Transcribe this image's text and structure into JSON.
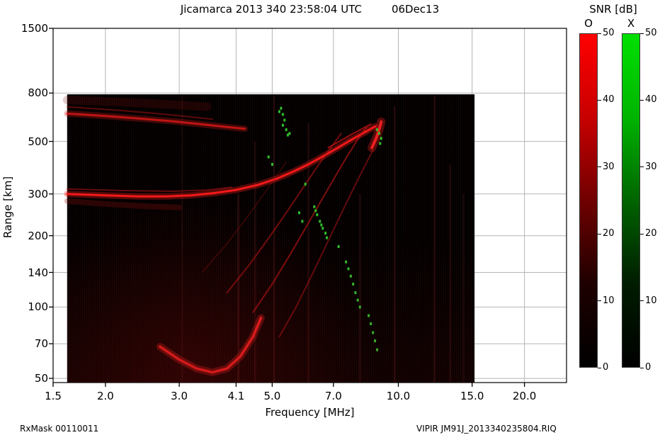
{
  "title": {
    "main": "Jicamarca 2013 340 23:58:04 UTC",
    "date": "06Dec13"
  },
  "footer": {
    "left": "RxMask 00110011",
    "right": "VIPIR  JM91J_2013340235804.RIQ"
  },
  "colorbar": {
    "title": "SNR [dB]",
    "o_label": "O",
    "x_label": "X",
    "min": 0,
    "max": 50,
    "ticks": [
      "50",
      "40",
      "30",
      "20",
      "10",
      "0"
    ],
    "o_gradient": [
      "#ff0000",
      "#c80000",
      "#700000",
      "#1e0000",
      "#000000"
    ],
    "x_gradient": [
      "#00e000",
      "#00b400",
      "#006400",
      "#001c00",
      "#000000"
    ]
  },
  "chart_data": {
    "type": "heatmap",
    "title": "Jicamarca 2013 340 23:58:04 UTC 06Dec13",
    "xlabel": "Frequency [MHz]",
    "ylabel": "Range [km]",
    "x_scale": "log",
    "y_scale": "log",
    "xlim": [
      1.5,
      25.2
    ],
    "ylim": [
      48,
      1500
    ],
    "x_ticks": [
      {
        "v": 1.5,
        "label": "1.5"
      },
      {
        "v": 2.0,
        "label": "2.0"
      },
      {
        "v": 3.0,
        "label": "3.0"
      },
      {
        "v": 4.1,
        "label": "4.1"
      },
      {
        "v": 5.0,
        "label": "5.0"
      },
      {
        "v": 7.0,
        "label": "7.0"
      },
      {
        "v": 10.0,
        "label": "10.0"
      },
      {
        "v": 15.0,
        "label": "15.0"
      },
      {
        "v": 20.0,
        "label": "20.0"
      }
    ],
    "y_ticks": [
      {
        "v": 1500,
        "label": "1500"
      },
      {
        "v": 800,
        "label": "800"
      },
      {
        "v": 500,
        "label": "500"
      },
      {
        "v": 300,
        "label": "300"
      },
      {
        "v": 200,
        "label": "200"
      },
      {
        "v": 140,
        "label": "140"
      },
      {
        "v": 100,
        "label": "100"
      },
      {
        "v": 70,
        "label": "70"
      },
      {
        "v": 50,
        "label": "50"
      }
    ],
    "snr_colorbar": {
      "min": 0,
      "max": 50,
      "modes": [
        "O",
        "X"
      ]
    },
    "data_extent": {
      "freq": [
        1.62,
        15.2
      ],
      "range": [
        48,
        790
      ]
    },
    "rfi_streaks": [
      {
        "freq": 3.05,
        "range": [
          48,
          780
        ],
        "opacity": 0.1
      },
      {
        "freq": 4.15,
        "range": [
          48,
          300
        ],
        "opacity": 0.18
      },
      {
        "freq": 4.55,
        "range": [
          48,
          500
        ],
        "opacity": 0.14
      },
      {
        "freq": 5.05,
        "range": [
          48,
          780
        ],
        "opacity": 0.16
      },
      {
        "freq": 6.1,
        "range": [
          48,
          600
        ],
        "opacity": 0.14
      },
      {
        "freq": 8.1,
        "range": [
          48,
          300
        ],
        "opacity": 0.14
      },
      {
        "freq": 9.8,
        "range": [
          48,
          700
        ],
        "opacity": 0.16
      },
      {
        "freq": 12.2,
        "range": [
          48,
          780
        ],
        "opacity": 0.16
      },
      {
        "freq": 13.3,
        "range": [
          48,
          400
        ],
        "opacity": 0.12
      },
      {
        "freq": 14.3,
        "range": [
          48,
          300
        ],
        "opacity": 0.1
      }
    ],
    "traces": [
      {
        "name": "f-layer-main",
        "mode": "O",
        "color": "#ff1a1a",
        "width": 3,
        "opacity": 0.95,
        "halo": true,
        "points": [
          [
            1.62,
            300
          ],
          [
            2.0,
            296
          ],
          [
            2.4,
            293
          ],
          [
            2.8,
            293
          ],
          [
            3.2,
            296
          ],
          [
            3.6,
            302
          ],
          [
            4.1,
            312
          ],
          [
            4.6,
            327
          ],
          [
            5.1,
            347
          ],
          [
            5.6,
            372
          ],
          [
            6.1,
            400
          ],
          [
            6.6,
            432
          ],
          [
            7.1,
            465
          ],
          [
            7.6,
            500
          ],
          [
            8.1,
            532
          ],
          [
            8.5,
            558
          ],
          [
            8.8,
            578
          ]
        ]
      },
      {
        "name": "f-layer-second",
        "mode": "O",
        "color": "#c41414",
        "width": 2,
        "opacity": 0.5,
        "halo": false,
        "points": [
          [
            1.62,
            315
          ],
          [
            2.2,
            310
          ],
          [
            2.9,
            308
          ],
          [
            3.5,
            312
          ],
          [
            4.0,
            320
          ]
        ]
      },
      {
        "name": "f-layer-diffuse",
        "mode": "O",
        "color": "#8f1010",
        "width": 8,
        "opacity": 0.28,
        "halo": false,
        "points": [
          [
            1.62,
            280
          ],
          [
            2.0,
            272
          ],
          [
            2.5,
            266
          ],
          [
            3.0,
            263
          ]
        ]
      },
      {
        "name": "upper-band-main",
        "mode": "O",
        "color": "#e01818",
        "width": 3,
        "opacity": 0.8,
        "halo": true,
        "points": [
          [
            1.62,
            655
          ],
          [
            2.0,
            640
          ],
          [
            2.4,
            625
          ],
          [
            2.9,
            608
          ],
          [
            3.4,
            590
          ],
          [
            3.9,
            575
          ],
          [
            4.3,
            565
          ]
        ]
      },
      {
        "name": "upper-band-second",
        "mode": "O",
        "color": "#b31212",
        "width": 2,
        "opacity": 0.5,
        "halo": false,
        "points": [
          [
            1.62,
            700
          ],
          [
            2.1,
            678
          ],
          [
            2.6,
            658
          ],
          [
            3.1,
            638
          ],
          [
            3.6,
            620
          ]
        ]
      },
      {
        "name": "upper-diffuse",
        "mode": "O",
        "color": "#7a0d0d",
        "width": 12,
        "opacity": 0.22,
        "halo": false,
        "points": [
          [
            1.62,
            748
          ],
          [
            2.2,
            732
          ],
          [
            2.9,
            714
          ],
          [
            3.5,
            700
          ]
        ]
      },
      {
        "name": "cusp",
        "mode": "O",
        "color": "#ff2020",
        "width": 4,
        "opacity": 0.9,
        "halo": true,
        "points": [
          [
            8.65,
            470
          ],
          [
            8.85,
            515
          ],
          [
            9.0,
            560
          ],
          [
            9.1,
            605
          ]
        ]
      },
      {
        "name": "near-cusp-upper",
        "mode": "O",
        "color": "#d81616",
        "width": 2,
        "opacity": 0.7,
        "halo": false,
        "points": [
          [
            6.8,
            470
          ],
          [
            7.3,
            505
          ],
          [
            7.8,
            540
          ],
          [
            8.3,
            572
          ],
          [
            8.6,
            592
          ]
        ]
      },
      {
        "name": "oblique-1",
        "mode": "O",
        "color": "#c81414",
        "width": 2,
        "opacity": 0.55,
        "halo": false,
        "points": [
          [
            3.9,
            115
          ],
          [
            4.4,
            150
          ],
          [
            4.9,
            195
          ],
          [
            5.4,
            250
          ],
          [
            5.9,
            315
          ],
          [
            6.4,
            390
          ],
          [
            6.9,
            470
          ],
          [
            7.3,
            540
          ]
        ]
      },
      {
        "name": "oblique-2",
        "mode": "O",
        "color": "#d01515",
        "width": 2,
        "opacity": 0.6,
        "halo": false,
        "points": [
          [
            4.5,
            95
          ],
          [
            5.0,
            125
          ],
          [
            5.5,
            165
          ],
          [
            6.0,
            215
          ],
          [
            6.5,
            275
          ],
          [
            7.0,
            345
          ],
          [
            7.5,
            425
          ],
          [
            8.0,
            510
          ],
          [
            8.4,
            575
          ]
        ]
      },
      {
        "name": "oblique-3",
        "mode": "O",
        "color": "#c01313",
        "width": 2,
        "opacity": 0.5,
        "halo": false,
        "points": [
          [
            5.2,
            75
          ],
          [
            5.7,
            100
          ],
          [
            6.2,
            135
          ],
          [
            6.7,
            180
          ],
          [
            7.2,
            235
          ],
          [
            7.7,
            300
          ],
          [
            8.2,
            375
          ],
          [
            8.7,
            460
          ]
        ]
      },
      {
        "name": "oblique-4",
        "mode": "O",
        "color": "#a01010",
        "width": 1.5,
        "opacity": 0.35,
        "halo": false,
        "points": [
          [
            3.4,
            140
          ],
          [
            3.9,
            185
          ],
          [
            4.4,
            245
          ],
          [
            4.9,
            320
          ],
          [
            5.4,
            410
          ]
        ]
      },
      {
        "name": "bottom-arc",
        "mode": "O",
        "color": "#ff2222",
        "width": 3.5,
        "opacity": 0.9,
        "halo": true,
        "points": [
          [
            2.7,
            68
          ],
          [
            3.0,
            60
          ],
          [
            3.3,
            55
          ],
          [
            3.6,
            53
          ],
          [
            3.9,
            55
          ],
          [
            4.2,
            62
          ],
          [
            4.5,
            75
          ],
          [
            4.7,
            90
          ]
        ]
      }
    ],
    "x_mode_points": [
      [
        5.25,
        690
      ],
      [
        5.2,
        668
      ],
      [
        5.3,
        650
      ],
      [
        5.35,
        615
      ],
      [
        5.3,
        585
      ],
      [
        5.4,
        560
      ],
      [
        5.5,
        540
      ],
      [
        5.45,
        532
      ],
      [
        5.8,
        250
      ],
      [
        5.9,
        230
      ],
      [
        6.3,
        265
      ],
      [
        6.35,
        255
      ],
      [
        6.4,
        245
      ],
      [
        6.5,
        230
      ],
      [
        6.55,
        222
      ],
      [
        6.6,
        215
      ],
      [
        6.7,
        205
      ],
      [
        6.75,
        196
      ],
      [
        7.5,
        155
      ],
      [
        7.6,
        145
      ],
      [
        7.7,
        135
      ],
      [
        7.8,
        125
      ],
      [
        7.9,
        115
      ],
      [
        8.0,
        107
      ],
      [
        8.1,
        100
      ],
      [
        8.5,
        92
      ],
      [
        8.6,
        85
      ],
      [
        8.7,
        78
      ],
      [
        8.8,
        72
      ],
      [
        8.9,
        66
      ],
      [
        8.9,
        560
      ],
      [
        9.0,
        540
      ],
      [
        9.1,
        515
      ],
      [
        9.05,
        490
      ],
      [
        4.9,
        430
      ],
      [
        5.0,
        400
      ],
      [
        6.0,
        330
      ],
      [
        7.2,
        180
      ]
    ]
  }
}
